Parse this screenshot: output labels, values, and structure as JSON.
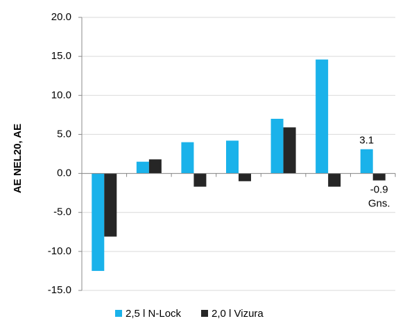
{
  "chart_data": {
    "type": "bar",
    "y_label": "AE NEL20, AE",
    "categories": [
      null,
      null,
      null,
      null,
      null,
      null,
      null
    ],
    "series": [
      {
        "name": "2,5 l N-Lock",
        "color": "#1ab2ea",
        "values": [
          -12.5,
          1.5,
          4.0,
          4.2,
          7.0,
          14.6,
          3.1
        ]
      },
      {
        "name": "2,0 l Vizura",
        "color": "#262626",
        "values": [
          -8.1,
          1.8,
          -1.7,
          -1.0,
          5.9,
          -1.7,
          -0.9
        ]
      }
    ],
    "data_labels": [
      {
        "series": 0,
        "index": 6
      },
      {
        "series": 1,
        "index": 6
      }
    ],
    "annotations": [
      "Gns."
    ],
    "ylim": [
      -15,
      20
    ],
    "yticks": [
      {
        "value": -15,
        "label": "-15.0"
      },
      {
        "value": -10,
        "label": "-10.0"
      },
      {
        "value": -5,
        "label": "-5.0"
      },
      {
        "value": 0,
        "label": "0.0"
      },
      {
        "value": 5,
        "label": "5.0"
      },
      {
        "value": 10,
        "label": "10.0"
      },
      {
        "value": 15,
        "label": "15.0"
      },
      {
        "value": 20,
        "label": "20.0"
      }
    ],
    "grid": true,
    "legend": "bottom"
  }
}
